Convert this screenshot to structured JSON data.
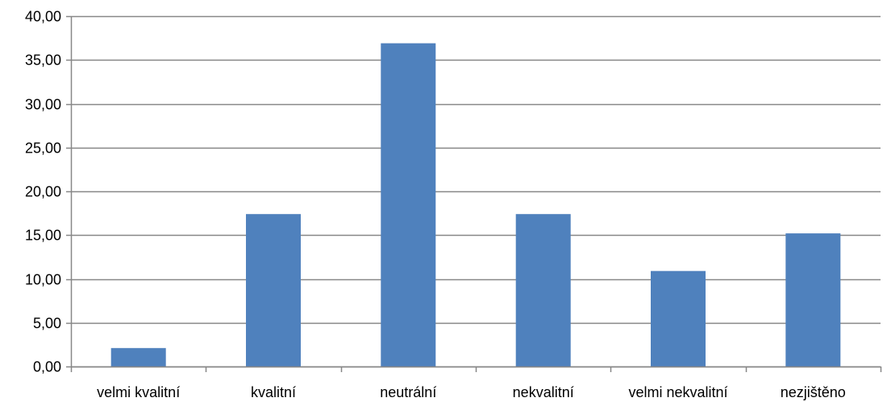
{
  "chart_data": {
    "type": "bar",
    "title": "",
    "xlabel": "",
    "ylabel": "",
    "categories": [
      "velmi kvalitní",
      "kvalitní",
      "neutrální",
      "nekvalitní",
      "velmi nekvalitní",
      "nezjištěno"
    ],
    "series": [
      {
        "values": [
          2.1,
          17.4,
          36.9,
          17.4,
          10.9,
          15.2
        ]
      }
    ],
    "ylim": [
      0,
      40
    ],
    "yticks": [
      0,
      5,
      10,
      15,
      20,
      25,
      30,
      35,
      40
    ],
    "ytick_labels": [
      "0,00",
      "5,00",
      "10,00",
      "15,00",
      "20,00",
      "25,00",
      "30,00",
      "35,00",
      "40,00"
    ],
    "grid": true,
    "legend": "none",
    "colors": {
      "bar": "#4f81bd",
      "grid": "#878787",
      "axis": "#878787"
    }
  }
}
